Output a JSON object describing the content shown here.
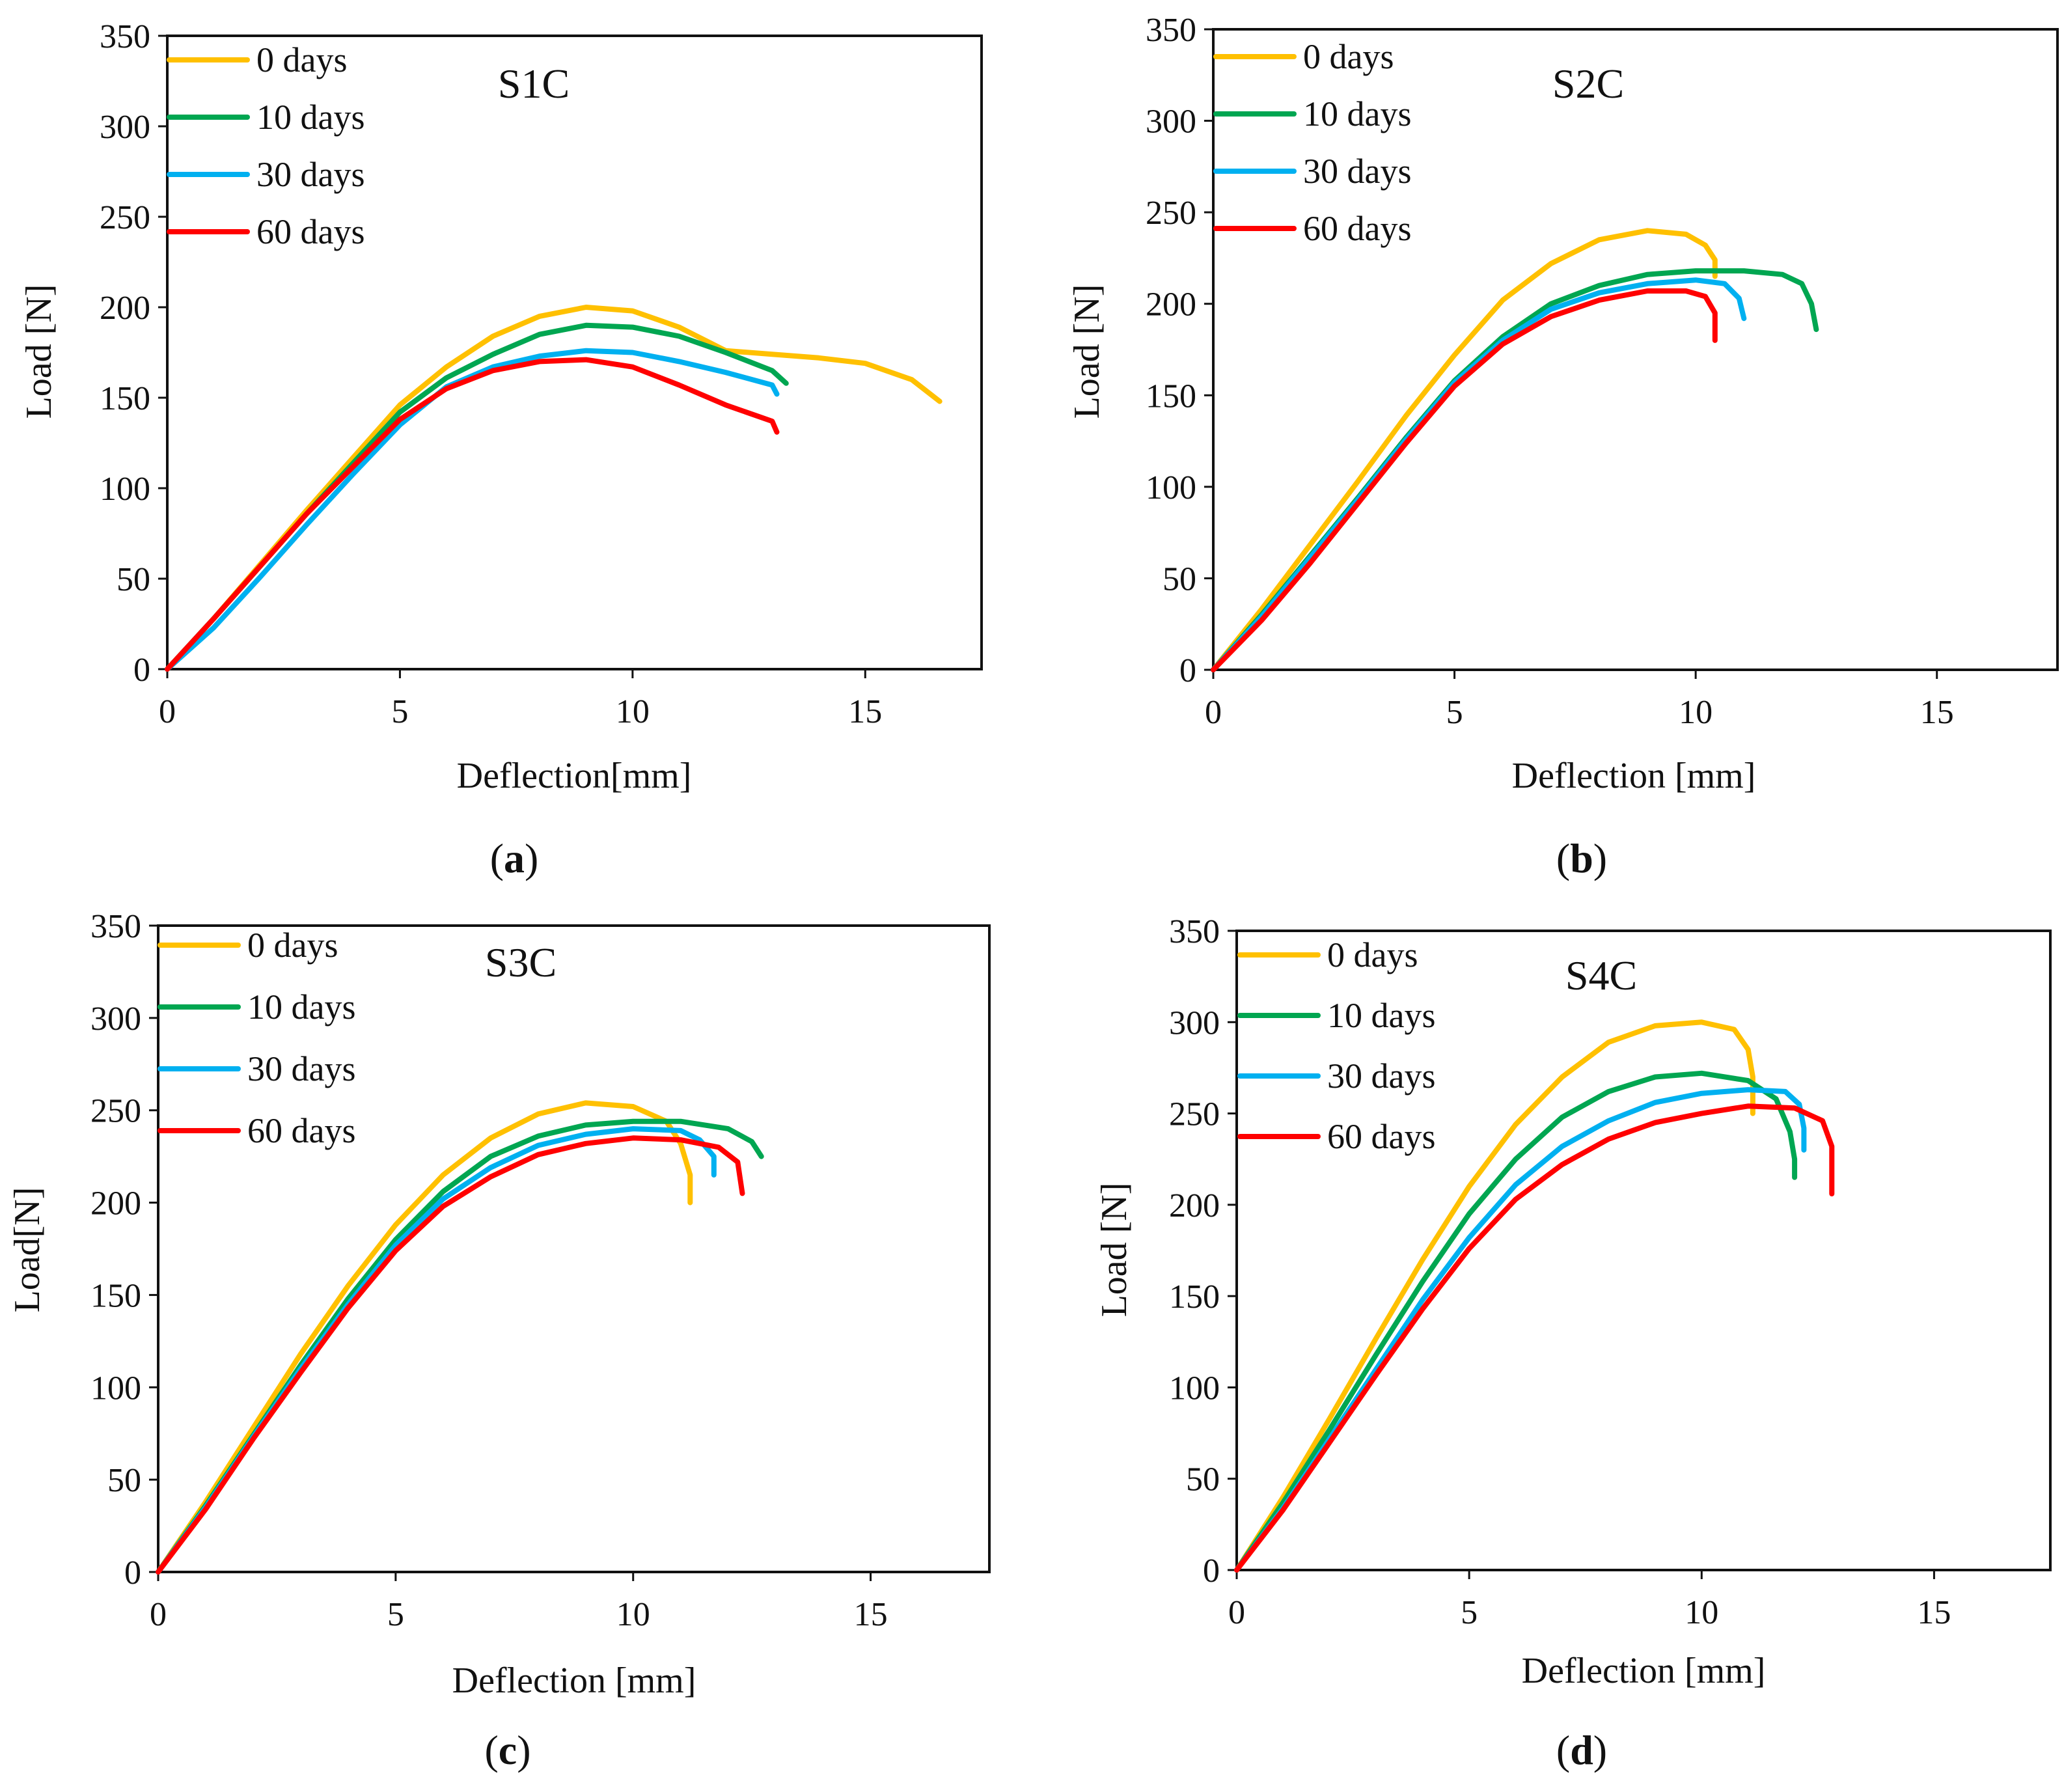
{
  "chart_data": [
    {
      "type": "line",
      "title": "S1C",
      "xlabel": "Deflection[mm]",
      "ylabel": "Load [N]",
      "caption": {
        "open": "(",
        "letter": "a",
        "close": ")"
      },
      "xlim": [
        0,
        17.5
      ],
      "ylim": [
        0,
        350
      ],
      "xticks": [
        0,
        5,
        10,
        15
      ],
      "yticks": [
        0,
        50,
        100,
        150,
        200,
        250,
        300,
        350
      ],
      "series": [
        {
          "name": "0 days",
          "color": "#FFC000",
          "points": [
            [
              0,
              0
            ],
            [
              1,
              28
            ],
            [
              2,
              58
            ],
            [
              3,
              88
            ],
            [
              4,
              117
            ],
            [
              5,
              146
            ],
            [
              6,
              167
            ],
            [
              7,
              184
            ],
            [
              8,
              195
            ],
            [
              9,
              200
            ],
            [
              10,
              198
            ],
            [
              11,
              189
            ],
            [
              12,
              176
            ],
            [
              13,
              174
            ],
            [
              14,
              172
            ],
            [
              15,
              169
            ],
            [
              16,
              160
            ],
            [
              16.6,
              148
            ]
          ]
        },
        {
          "name": "10 days",
          "color": "#00A651",
          "points": [
            [
              0,
              0
            ],
            [
              1,
              28
            ],
            [
              2,
              57
            ],
            [
              3,
              86
            ],
            [
              4,
              114
            ],
            [
              5,
              142
            ],
            [
              6,
              161
            ],
            [
              7,
              174
            ],
            [
              8,
              185
            ],
            [
              9,
              190
            ],
            [
              10,
              189
            ],
            [
              11,
              184
            ],
            [
              12,
              175
            ],
            [
              13,
              165
            ],
            [
              13.3,
              158
            ]
          ]
        },
        {
          "name": "30 days",
          "color": "#00B0F0",
          "points": [
            [
              0,
              0
            ],
            [
              1,
              23
            ],
            [
              2,
              51
            ],
            [
              3,
              80
            ],
            [
              4,
              108
            ],
            [
              5,
              135
            ],
            [
              6,
              156
            ],
            [
              7,
              167
            ],
            [
              8,
              173
            ],
            [
              9,
              176
            ],
            [
              10,
              175
            ],
            [
              11,
              170
            ],
            [
              12,
              164
            ],
            [
              13,
              157
            ],
            [
              13.1,
              152
            ]
          ]
        },
        {
          "name": "60 days",
          "color": "#FF0000",
          "points": [
            [
              0,
              0
            ],
            [
              1,
              28
            ],
            [
              2,
              57
            ],
            [
              3,
              86
            ],
            [
              4,
              112
            ],
            [
              5,
              138
            ],
            [
              6,
              155
            ],
            [
              7,
              165
            ],
            [
              8,
              170
            ],
            [
              9,
              171
            ],
            [
              10,
              167
            ],
            [
              11,
              157
            ],
            [
              12,
              146
            ],
            [
              13,
              137
            ],
            [
              13.1,
              131
            ]
          ]
        }
      ]
    },
    {
      "type": "line",
      "title": "S2C",
      "xlabel": "Deflection [mm]",
      "ylabel": "Load [N]",
      "caption": {
        "open": "(",
        "letter": "b",
        "close": ")"
      },
      "xlim": [
        0,
        17.5
      ],
      "ylim": [
        0,
        350
      ],
      "xticks": [
        0,
        5,
        10,
        15
      ],
      "yticks": [
        0,
        50,
        100,
        150,
        200,
        250,
        300,
        350
      ],
      "series": [
        {
          "name": "0 days",
          "color": "#FFC000",
          "points": [
            [
              0,
              0
            ],
            [
              1,
              33
            ],
            [
              2,
              68
            ],
            [
              3,
              103
            ],
            [
              4,
              139
            ],
            [
              5,
              172
            ],
            [
              6,
              202
            ],
            [
              7,
              222
            ],
            [
              8,
              235
            ],
            [
              9,
              240
            ],
            [
              9.8,
              238
            ],
            [
              10.2,
              232
            ],
            [
              10.4,
              224
            ],
            [
              10.4,
              215
            ]
          ]
        },
        {
          "name": "10 days",
          "color": "#00A651",
          "points": [
            [
              0,
              0
            ],
            [
              1,
              30
            ],
            [
              2,
              62
            ],
            [
              3,
              94
            ],
            [
              4,
              127
            ],
            [
              5,
              158
            ],
            [
              6,
              182
            ],
            [
              7,
              200
            ],
            [
              8,
              210
            ],
            [
              9,
              216
            ],
            [
              10,
              218
            ],
            [
              11,
              218
            ],
            [
              11.8,
              216
            ],
            [
              12.2,
              211
            ],
            [
              12.4,
              200
            ],
            [
              12.5,
              186
            ]
          ]
        },
        {
          "name": "30 days",
          "color": "#00B0F0",
          "points": [
            [
              0,
              0
            ],
            [
              1,
              29
            ],
            [
              2,
              61
            ],
            [
              3,
              93
            ],
            [
              4,
              126
            ],
            [
              5,
              157
            ],
            [
              6,
              180
            ],
            [
              7,
              197
            ],
            [
              8,
              206
            ],
            [
              9,
              211
            ],
            [
              10,
              213
            ],
            [
              10.6,
              211
            ],
            [
              10.9,
              203
            ],
            [
              11,
              192
            ]
          ]
        },
        {
          "name": "60 days",
          "color": "#FF0000",
          "points": [
            [
              0,
              0
            ],
            [
              1,
              27
            ],
            [
              2,
              58
            ],
            [
              3,
              91
            ],
            [
              4,
              124
            ],
            [
              5,
              155
            ],
            [
              6,
              178
            ],
            [
              7,
              193
            ],
            [
              8,
              202
            ],
            [
              9,
              207
            ],
            [
              9.8,
              207
            ],
            [
              10.2,
              204
            ],
            [
              10.4,
              195
            ],
            [
              10.4,
              180
            ]
          ]
        }
      ]
    },
    {
      "type": "line",
      "title": "S3C",
      "xlabel": "Deflection [mm]",
      "ylabel": "Load[N]",
      "caption": {
        "open": "(",
        "letter": "c",
        "close": ")"
      },
      "xlim": [
        0,
        17.5
      ],
      "ylim": [
        0,
        350
      ],
      "xticks": [
        0,
        5,
        10,
        15
      ],
      "yticks": [
        0,
        50,
        100,
        150,
        200,
        250,
        300,
        350
      ],
      "series": [
        {
          "name": "0 days",
          "color": "#FFC000",
          "points": [
            [
              0,
              0
            ],
            [
              1,
              38
            ],
            [
              2,
              78
            ],
            [
              3,
              118
            ],
            [
              4,
              155
            ],
            [
              5,
              188
            ],
            [
              6,
              215
            ],
            [
              7,
              235
            ],
            [
              8,
              248
            ],
            [
              9,
              254
            ],
            [
              10,
              252
            ],
            [
              10.7,
              244
            ],
            [
              11,
              232
            ],
            [
              11.2,
              215
            ],
            [
              11.2,
              200
            ]
          ]
        },
        {
          "name": "10 days",
          "color": "#00A651",
          "points": [
            [
              0,
              0
            ],
            [
              1,
              36
            ],
            [
              2,
              74
            ],
            [
              3,
              112
            ],
            [
              4,
              148
            ],
            [
              5,
              180
            ],
            [
              6,
              206
            ],
            [
              7,
              225
            ],
            [
              8,
              236
            ],
            [
              9,
              242
            ],
            [
              10,
              244
            ],
            [
              11,
              244
            ],
            [
              12,
              240
            ],
            [
              12.5,
              233
            ],
            [
              12.7,
              225
            ]
          ]
        },
        {
          "name": "30 days",
          "color": "#00B0F0",
          "points": [
            [
              0,
              0
            ],
            [
              1,
              35
            ],
            [
              2,
              73
            ],
            [
              3,
              110
            ],
            [
              4,
              145
            ],
            [
              5,
              177
            ],
            [
              6,
              202
            ],
            [
              7,
              219
            ],
            [
              8,
              231
            ],
            [
              9,
              237
            ],
            [
              10,
              240
            ],
            [
              11,
              239
            ],
            [
              11.4,
              234
            ],
            [
              11.7,
              225
            ],
            [
              11.7,
              215
            ]
          ]
        },
        {
          "name": "60 days",
          "color": "#FF0000",
          "points": [
            [
              0,
              0
            ],
            [
              1,
              34
            ],
            [
              2,
              72
            ],
            [
              3,
              108
            ],
            [
              4,
              143
            ],
            [
              5,
              174
            ],
            [
              6,
              198
            ],
            [
              7,
              214
            ],
            [
              8,
              226
            ],
            [
              9,
              232
            ],
            [
              10,
              235
            ],
            [
              11,
              234
            ],
            [
              11.8,
              230
            ],
            [
              12.2,
              222
            ],
            [
              12.3,
              205
            ]
          ]
        }
      ]
    },
    {
      "type": "line",
      "title": "S4C",
      "xlabel": "Deflection [mm]",
      "ylabel": "Load [N]",
      "caption": {
        "open": "(",
        "letter": "d",
        "close": ")"
      },
      "xlim": [
        0,
        17.5
      ],
      "ylim": [
        0,
        350
      ],
      "xticks": [
        0,
        5,
        10,
        15
      ],
      "yticks": [
        0,
        50,
        100,
        150,
        200,
        250,
        300,
        350
      ],
      "series": [
        {
          "name": "0 days",
          "color": "#FFC000",
          "points": [
            [
              0,
              0
            ],
            [
              1,
              40
            ],
            [
              2,
              83
            ],
            [
              3,
              127
            ],
            [
              4,
              170
            ],
            [
              5,
              210
            ],
            [
              6,
              244
            ],
            [
              7,
              270
            ],
            [
              8,
              289
            ],
            [
              9,
              298
            ],
            [
              10,
              300
            ],
            [
              10.7,
              296
            ],
            [
              11,
              285
            ],
            [
              11.1,
              270
            ],
            [
              11.1,
              250
            ]
          ]
        },
        {
          "name": "10 days",
          "color": "#00A651",
          "points": [
            [
              0,
              0
            ],
            [
              1,
              37
            ],
            [
              2,
              77
            ],
            [
              3,
              118
            ],
            [
              4,
              158
            ],
            [
              5,
              195
            ],
            [
              6,
              225
            ],
            [
              7,
              248
            ],
            [
              8,
              262
            ],
            [
              9,
              270
            ],
            [
              10,
              272
            ],
            [
              11,
              268
            ],
            [
              11.6,
              258
            ],
            [
              11.9,
              240
            ],
            [
              12,
              225
            ],
            [
              12,
              215
            ]
          ]
        },
        {
          "name": "30 days",
          "color": "#00B0F0",
          "points": [
            [
              0,
              0
            ],
            [
              1,
              34
            ],
            [
              2,
              72
            ],
            [
              3,
              110
            ],
            [
              4,
              148
            ],
            [
              5,
              182
            ],
            [
              6,
              211
            ],
            [
              7,
              232
            ],
            [
              8,
              246
            ],
            [
              9,
              256
            ],
            [
              10,
              261
            ],
            [
              11,
              263
            ],
            [
              11.8,
              262
            ],
            [
              12.1,
              255
            ],
            [
              12.2,
              242
            ],
            [
              12.2,
              230
            ]
          ]
        },
        {
          "name": "60 days",
          "color": "#FF0000",
          "points": [
            [
              0,
              0
            ],
            [
              1,
              33
            ],
            [
              2,
              70
            ],
            [
              3,
              107
            ],
            [
              4,
              143
            ],
            [
              5,
              176
            ],
            [
              6,
              203
            ],
            [
              7,
              222
            ],
            [
              8,
              236
            ],
            [
              9,
              245
            ],
            [
              10,
              250
            ],
            [
              11,
              254
            ],
            [
              12,
              253
            ],
            [
              12.6,
              246
            ],
            [
              12.8,
              232
            ],
            [
              12.8,
              206
            ]
          ]
        }
      ]
    }
  ]
}
